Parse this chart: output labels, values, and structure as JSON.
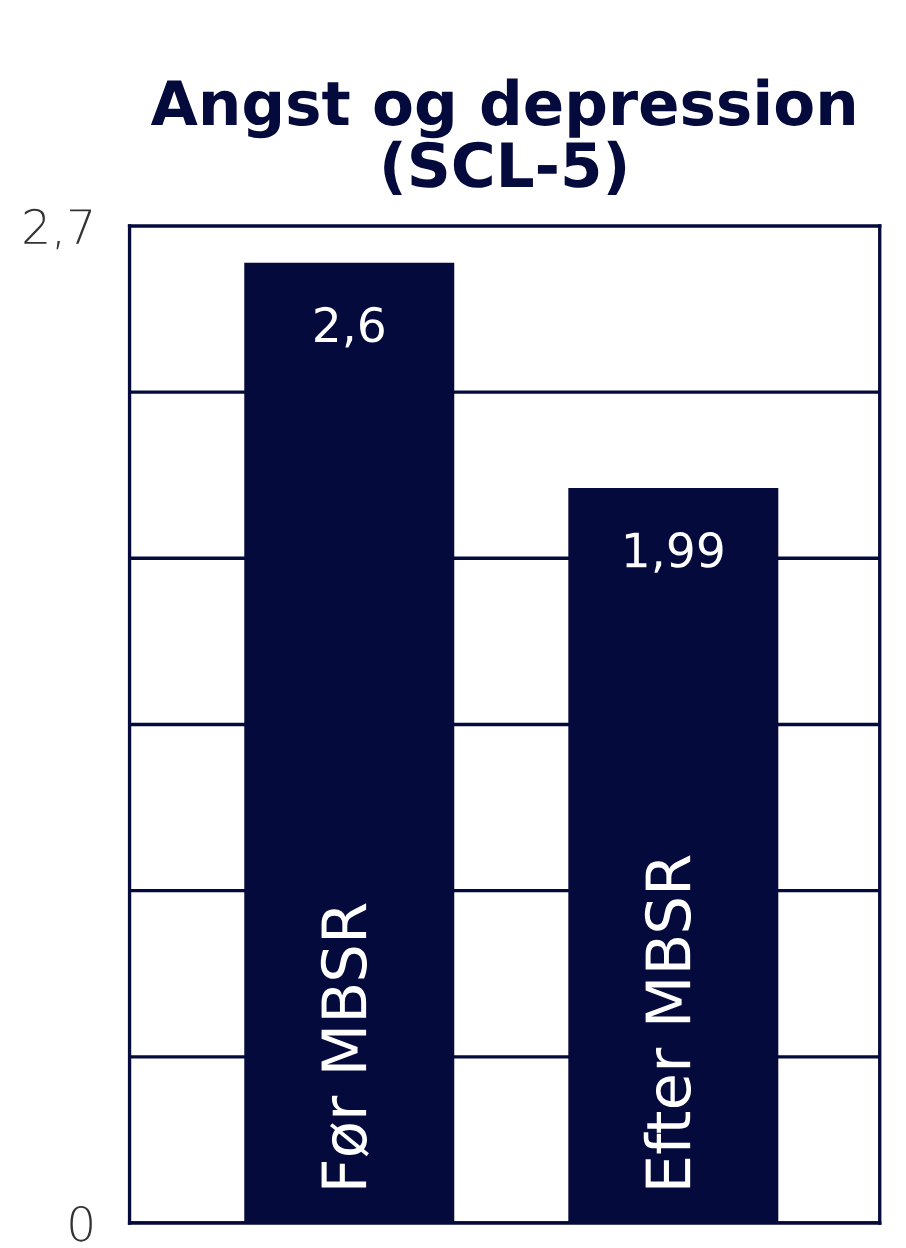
{
  "chart_data": {
    "type": "bar",
    "title": "Angst og depression\n(SCL-5)",
    "categories": [
      "Før MBSR",
      "Efter MBSR"
    ],
    "values": [
      2.6,
      1.99
    ],
    "value_labels": [
      "2,6",
      "1,99"
    ],
    "color": "#050a3c",
    "ylim": [
      0,
      2.7
    ],
    "yticks": [
      0,
      {
        "value": 0.45,
        "label": null
      },
      {
        "value": 0.9,
        "label": null
      },
      {
        "value": 1.35,
        "label": null
      },
      {
        "value": 1.8,
        "label": null
      },
      {
        "value": 2.25,
        "label": null
      },
      {
        "value": 2.7,
        "label": "2,7"
      }
    ],
    "grid": "y"
  }
}
